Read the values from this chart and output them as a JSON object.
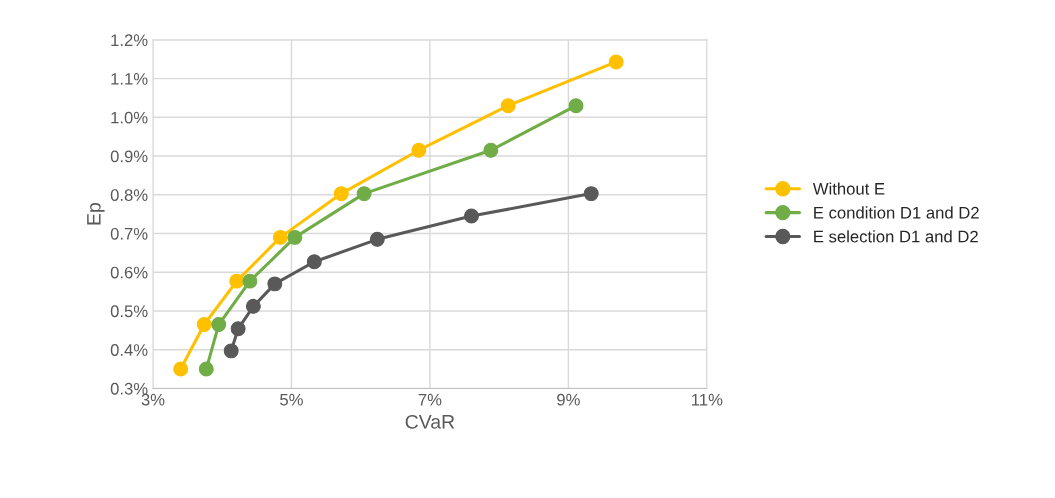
{
  "chart_data": {
    "type": "line",
    "xlabel": "CVaR",
    "ylabel": "Ep",
    "xlim": [
      3,
      11
    ],
    "xticks": [
      {
        "value": 3,
        "label": "3%"
      },
      {
        "value": 5,
        "label": "5%"
      },
      {
        "value": 7,
        "label": "7%"
      },
      {
        "value": 9,
        "label": "9%"
      },
      {
        "value": 11,
        "label": "11%"
      }
    ],
    "ylim": [
      0.3,
      1.2
    ],
    "yticks": [
      {
        "value": 0.3,
        "label": "0.3%"
      },
      {
        "value": 0.4,
        "label": "0.4%"
      },
      {
        "value": 0.5,
        "label": "0.5%"
      },
      {
        "value": 0.6,
        "label": "0.6%"
      },
      {
        "value": 0.7,
        "label": "0.7%"
      },
      {
        "value": 0.8,
        "label": "0.8%"
      },
      {
        "value": 0.9,
        "label": "0.9%"
      },
      {
        "value": 1.0,
        "label": "1.0%"
      },
      {
        "value": 1.1,
        "label": "1.1%"
      },
      {
        "value": 1.2,
        "label": "1.2%"
      }
    ],
    "grid": true,
    "legend": "right",
    "marker": "circle",
    "line_style": "solid",
    "series": [
      {
        "name": "Without E",
        "color": "#ffc000",
        "x": [
          3.4,
          3.74,
          4.21,
          4.84,
          5.72,
          6.84,
          8.13,
          9.69
        ],
        "values": [
          0.35,
          0.465,
          0.577,
          0.69,
          0.803,
          0.915,
          1.03,
          1.143
        ]
      },
      {
        "name": "E condition D1 and D2",
        "color": "#70ad47",
        "x": [
          3.77,
          3.95,
          4.4,
          5.05,
          6.05,
          7.88,
          9.11
        ],
        "values": [
          0.35,
          0.465,
          0.577,
          0.69,
          0.803,
          0.915,
          1.03
        ]
      },
      {
        "name": "E selection D1 and D2",
        "color": "#595959",
        "x": [
          4.13,
          4.23,
          4.45,
          4.76,
          5.33,
          6.24,
          7.6,
          9.33
        ],
        "values": [
          0.397,
          0.454,
          0.512,
          0.57,
          0.627,
          0.685,
          0.745,
          0.803
        ]
      }
    ]
  }
}
